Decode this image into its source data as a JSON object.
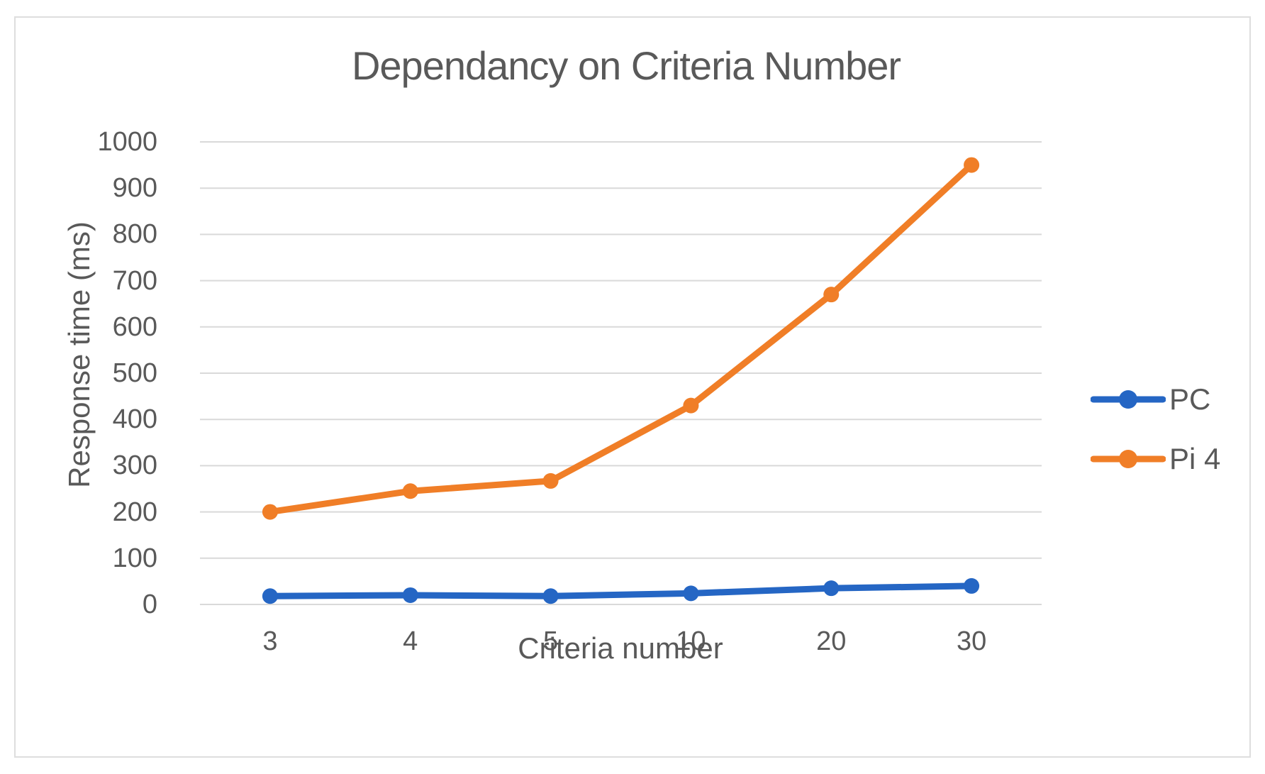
{
  "chart_data": {
    "type": "line",
    "title": "Dependancy on Criteria Number",
    "xlabel": "Criteria number",
    "ylabel": "Response time (ms)",
    "categories": [
      "3",
      "4",
      "5",
      "10",
      "20",
      "30"
    ],
    "series": [
      {
        "name": "PC",
        "color": "#2566c4",
        "values": [
          18,
          20,
          18,
          24,
          35,
          40
        ]
      },
      {
        "name": "Pi 4",
        "color": "#f07e27",
        "values": [
          200,
          245,
          267,
          430,
          670,
          950
        ]
      }
    ],
    "ylim": [
      0,
      1000
    ],
    "ytick_step": 100,
    "grid": true,
    "legend_position": "right",
    "gridline_color": "#d9d9d9",
    "text_color": "#595959",
    "background_color": "#ffffff",
    "border_color": "#dedede"
  }
}
